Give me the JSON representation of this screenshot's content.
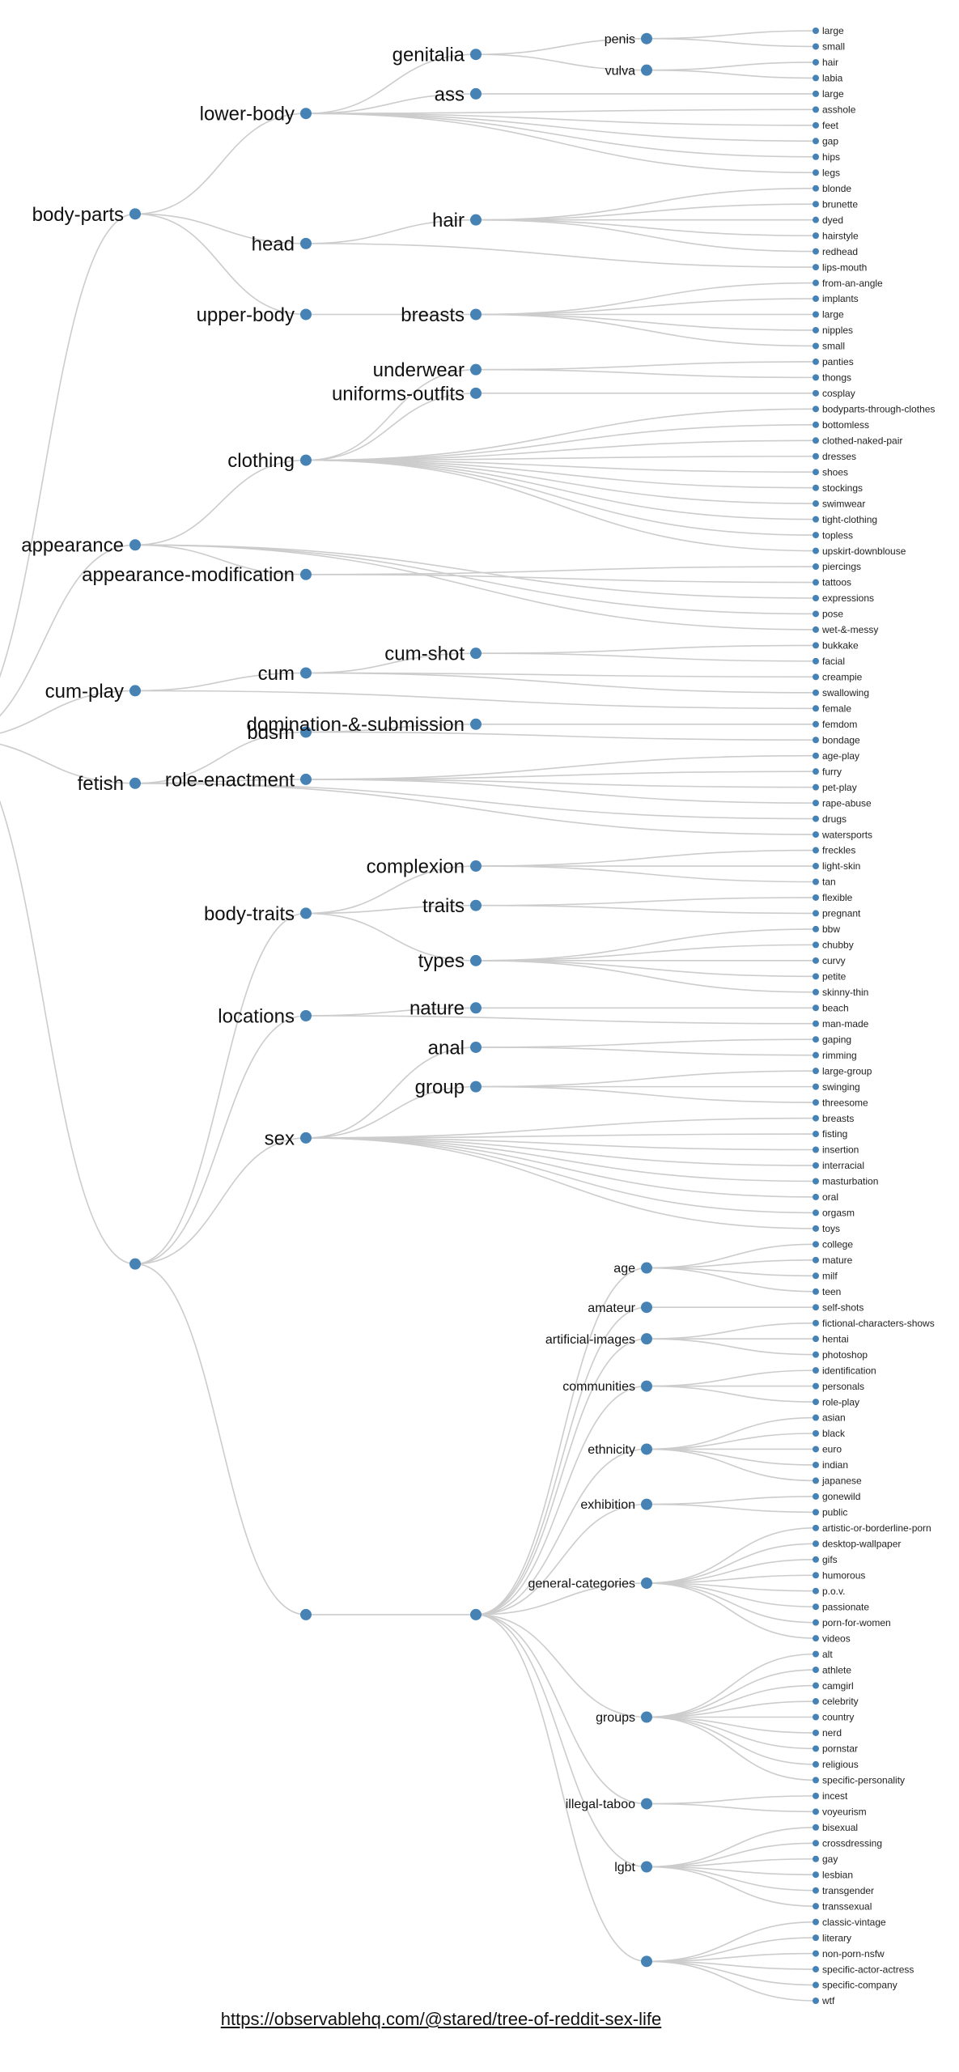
{
  "footer": {
    "link_text": "https://observablehq.com/@stared/tree-of-reddit-sex-life"
  },
  "colors": {
    "node": "#4682b4",
    "link": "#cccccc"
  },
  "tree": {
    "name": "",
    "children": [
      {
        "name": "body-parts",
        "children": [
          {
            "name": "lower-body",
            "children": [
              {
                "name": "genitalia",
                "children": [
                  {
                    "name": "penis",
                    "children": [
                      {
                        "name": "large"
                      },
                      {
                        "name": "small"
                      }
                    ]
                  },
                  {
                    "name": "vulva",
                    "children": [
                      {
                        "name": "hair"
                      },
                      {
                        "name": "labia"
                      }
                    ]
                  }
                ]
              },
              {
                "name": "ass",
                "children": [
                  {
                    "name": "large"
                  }
                ]
              },
              {
                "name": "asshole"
              },
              {
                "name": "feet"
              },
              {
                "name": "gap"
              },
              {
                "name": "hips"
              },
              {
                "name": "legs"
              }
            ]
          },
          {
            "name": "head",
            "children": [
              {
                "name": "hair",
                "children": [
                  {
                    "name": "blonde"
                  },
                  {
                    "name": "brunette"
                  },
                  {
                    "name": "dyed"
                  },
                  {
                    "name": "hairstyle"
                  },
                  {
                    "name": "redhead"
                  }
                ]
              },
              {
                "name": "lips-mouth"
              }
            ]
          },
          {
            "name": "upper-body",
            "children": [
              {
                "name": "breasts",
                "children": [
                  {
                    "name": "from-an-angle"
                  },
                  {
                    "name": "implants"
                  },
                  {
                    "name": "large"
                  },
                  {
                    "name": "nipples"
                  },
                  {
                    "name": "small"
                  }
                ]
              }
            ]
          }
        ]
      },
      {
        "name": "appearance",
        "children": [
          {
            "name": "clothing",
            "children": [
              {
                "name": "underwear",
                "children": [
                  {
                    "name": "panties"
                  },
                  {
                    "name": "thongs"
                  }
                ]
              },
              {
                "name": "uniforms-outfits",
                "children": [
                  {
                    "name": "cosplay"
                  }
                ]
              },
              {
                "name": "bodyparts-through-clothes"
              },
              {
                "name": "bottomless"
              },
              {
                "name": "clothed-naked-pair"
              },
              {
                "name": "dresses"
              },
              {
                "name": "shoes"
              },
              {
                "name": "stockings"
              },
              {
                "name": "swimwear"
              },
              {
                "name": "tight-clothing"
              },
              {
                "name": "topless"
              },
              {
                "name": "upskirt-downblouse"
              }
            ]
          },
          {
            "name": "appearance-modification",
            "children": [
              {
                "name": "piercings"
              },
              {
                "name": "tattoos"
              }
            ]
          },
          {
            "name": "expressions"
          },
          {
            "name": "pose"
          },
          {
            "name": "wet-&-messy"
          }
        ]
      },
      {
        "name": "cum-play",
        "children": [
          {
            "name": "cum",
            "children": [
              {
                "name": "cum-shot",
                "children": [
                  {
                    "name": "bukkake"
                  },
                  {
                    "name": "facial"
                  }
                ]
              },
              {
                "name": "creampie"
              },
              {
                "name": "swallowing"
              }
            ]
          },
          {
            "name": "female"
          }
        ]
      },
      {
        "name": "fetish",
        "children": [
          {
            "name": "bdsm",
            "children": [
              {
                "name": "domination-&-submission",
                "children": [
                  {
                    "name": "femdom"
                  }
                ]
              },
              {
                "name": "bondage"
              }
            ]
          },
          {
            "name": "role-enactment",
            "children": [
              {
                "name": "age-play"
              },
              {
                "name": "furry"
              },
              {
                "name": "pet-play"
              },
              {
                "name": "rape-abuse"
              }
            ]
          },
          {
            "name": "drugs"
          },
          {
            "name": "watersports"
          }
        ]
      },
      {
        "name": "",
        "children": [
          {
            "name": "body-traits",
            "children": [
              {
                "name": "complexion",
                "children": [
                  {
                    "name": "freckles"
                  },
                  {
                    "name": "light-skin"
                  },
                  {
                    "name": "tan"
                  }
                ]
              },
              {
                "name": "traits",
                "children": [
                  {
                    "name": "flexible"
                  },
                  {
                    "name": "pregnant"
                  }
                ]
              },
              {
                "name": "types",
                "children": [
                  {
                    "name": "bbw"
                  },
                  {
                    "name": "chubby"
                  },
                  {
                    "name": "curvy"
                  },
                  {
                    "name": "petite"
                  },
                  {
                    "name": "skinny-thin"
                  }
                ]
              }
            ]
          },
          {
            "name": "locations",
            "children": [
              {
                "name": "nature",
                "children": [
                  {
                    "name": "beach"
                  }
                ]
              },
              {
                "name": "man-made"
              }
            ]
          },
          {
            "name": "sex",
            "children": [
              {
                "name": "anal",
                "children": [
                  {
                    "name": "gaping"
                  },
                  {
                    "name": "rimming"
                  }
                ]
              },
              {
                "name": "group",
                "children": [
                  {
                    "name": "large-group"
                  },
                  {
                    "name": "swinging"
                  },
                  {
                    "name": "threesome"
                  }
                ]
              },
              {
                "name": "breasts"
              },
              {
                "name": "fisting"
              },
              {
                "name": "insertion"
              },
              {
                "name": "interracial"
              },
              {
                "name": "masturbation"
              },
              {
                "name": "oral"
              },
              {
                "name": "orgasm"
              },
              {
                "name": "toys"
              }
            ]
          },
          {
            "name": "",
            "children": [
              {
                "name": "",
                "children": [
                  {
                    "name": "age",
                    "children": [
                      {
                        "name": "college"
                      },
                      {
                        "name": "mature"
                      },
                      {
                        "name": "milf"
                      },
                      {
                        "name": "teen"
                      }
                    ]
                  },
                  {
                    "name": "amateur",
                    "children": [
                      {
                        "name": "self-shots"
                      }
                    ]
                  },
                  {
                    "name": "artificial-images",
                    "children": [
                      {
                        "name": "fictional-characters-shows"
                      },
                      {
                        "name": "hentai"
                      },
                      {
                        "name": "photoshop"
                      }
                    ]
                  },
                  {
                    "name": "communities",
                    "children": [
                      {
                        "name": "identification"
                      },
                      {
                        "name": "personals"
                      },
                      {
                        "name": "role-play"
                      }
                    ]
                  },
                  {
                    "name": "ethnicity",
                    "children": [
                      {
                        "name": "asian"
                      },
                      {
                        "name": "black"
                      },
                      {
                        "name": "euro"
                      },
                      {
                        "name": "indian"
                      },
                      {
                        "name": "japanese"
                      }
                    ]
                  },
                  {
                    "name": "exhibition",
                    "children": [
                      {
                        "name": "gonewild"
                      },
                      {
                        "name": "public"
                      }
                    ]
                  },
                  {
                    "name": "general-categories",
                    "children": [
                      {
                        "name": "artistic-or-borderline-porn"
                      },
                      {
                        "name": "desktop-wallpaper"
                      },
                      {
                        "name": "gifs"
                      },
                      {
                        "name": "humorous"
                      },
                      {
                        "name": "p.o.v."
                      },
                      {
                        "name": "passionate"
                      },
                      {
                        "name": "porn-for-women"
                      },
                      {
                        "name": "videos"
                      }
                    ]
                  },
                  {
                    "name": "groups",
                    "children": [
                      {
                        "name": "alt"
                      },
                      {
                        "name": "athlete"
                      },
                      {
                        "name": "camgirl"
                      },
                      {
                        "name": "celebrity"
                      },
                      {
                        "name": "country"
                      },
                      {
                        "name": "nerd"
                      },
                      {
                        "name": "pornstar"
                      },
                      {
                        "name": "religious"
                      },
                      {
                        "name": "specific-personality"
                      }
                    ]
                  },
                  {
                    "name": "illegal-taboo",
                    "children": [
                      {
                        "name": "incest"
                      },
                      {
                        "name": "voyeurism"
                      }
                    ]
                  },
                  {
                    "name": "lgbt",
                    "children": [
                      {
                        "name": "bisexual"
                      },
                      {
                        "name": "crossdressing"
                      },
                      {
                        "name": "gay"
                      },
                      {
                        "name": "lesbian"
                      },
                      {
                        "name": "transgender"
                      },
                      {
                        "name": "transsexual"
                      }
                    ]
                  },
                  {
                    "name": "",
                    "children": [
                      {
                        "name": "classic-vintage"
                      },
                      {
                        "name": "literary"
                      },
                      {
                        "name": "non-porn-nsfw"
                      },
                      {
                        "name": "specific-actor-actress"
                      },
                      {
                        "name": "specific-company"
                      },
                      {
                        "name": "wtf"
                      }
                    ]
                  }
                ]
              }
            ]
          }
        ]
      }
    ]
  }
}
